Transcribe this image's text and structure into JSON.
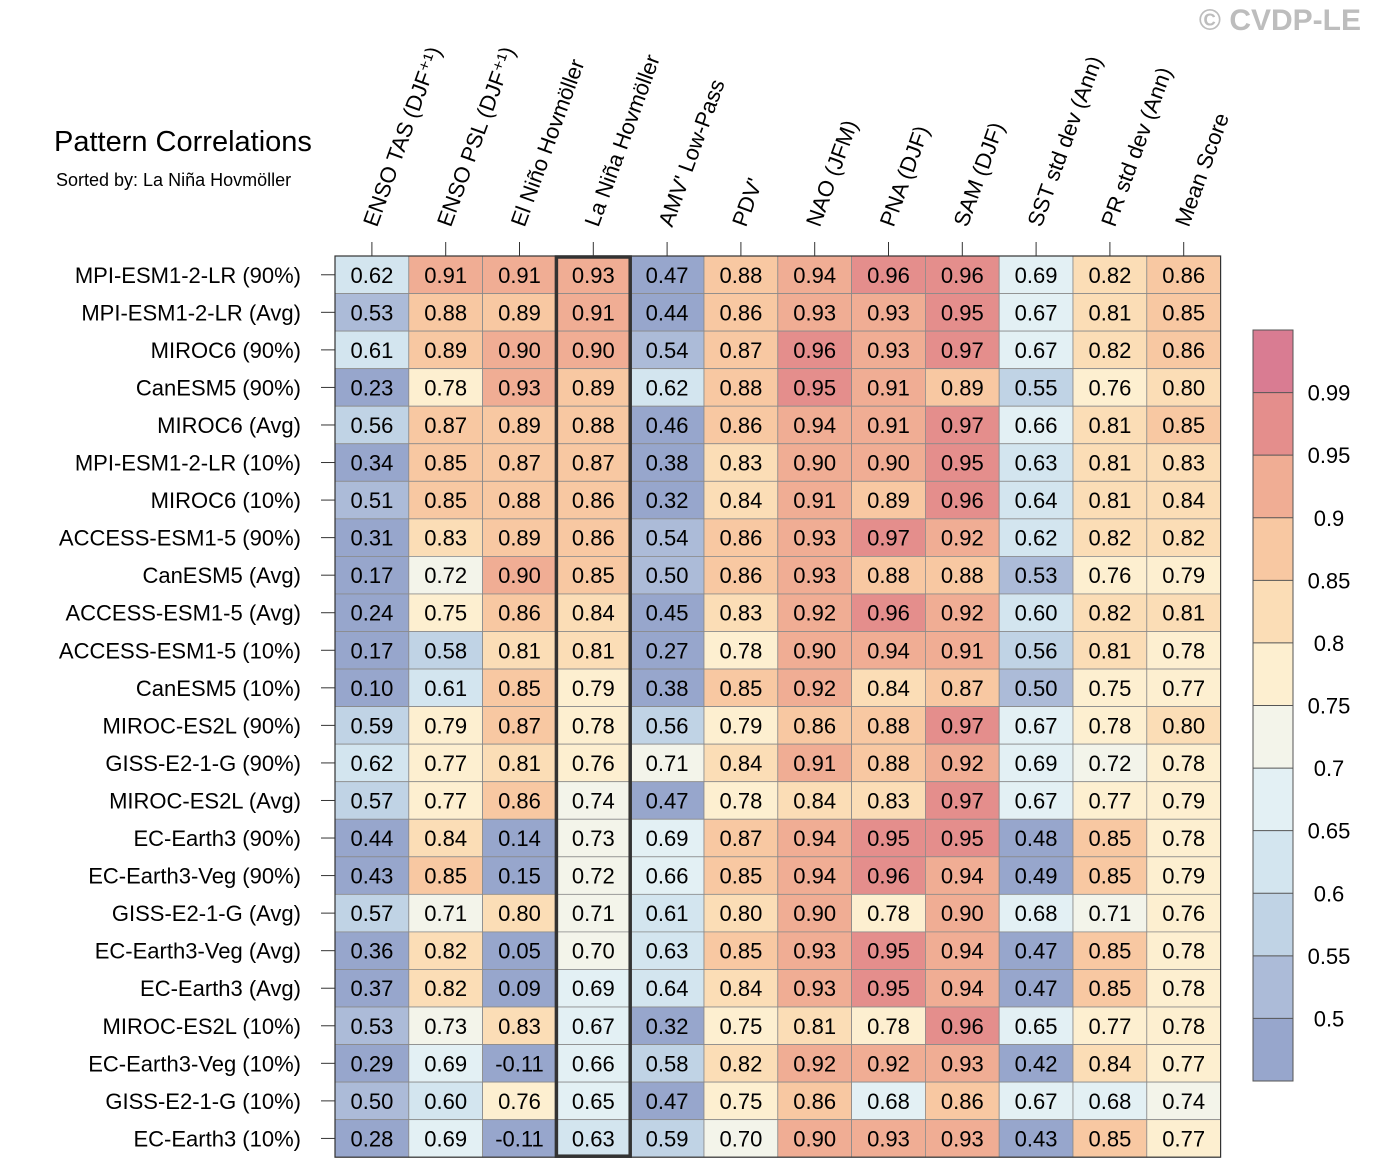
{
  "title": "Pattern Correlations",
  "subtitle": "Sorted by: La Niña Hovmöller",
  "watermark": "© CVDP-LE",
  "chart_data": {
    "type": "heatmap",
    "columns": [
      "ENSO TAS (DJF⁺¹)",
      "ENSO PSL (DJF⁺¹)",
      "El Niño Hovmöller",
      "La Niña Hovmöller",
      "AMV' Low-Pass",
      "PDV'",
      "NAO (JFM)",
      "PNA (DJF)",
      "SAM (DJF)",
      "SST std dev (Ann)",
      "PR std dev (Ann)",
      "Mean Score"
    ],
    "highlighted_column": "La Niña Hovmöller",
    "rows": [
      "MPI-ESM1-2-LR (90%)",
      "MPI-ESM1-2-LR (Avg)",
      "MIROC6 (90%)",
      "CanESM5 (90%)",
      "MIROC6 (Avg)",
      "MPI-ESM1-2-LR (10%)",
      "MIROC6 (10%)",
      "ACCESS-ESM1-5 (90%)",
      "CanESM5 (Avg)",
      "ACCESS-ESM1-5 (Avg)",
      "ACCESS-ESM1-5 (10%)",
      "CanESM5 (10%)",
      "MIROC-ES2L (90%)",
      "GISS-E2-1-G (90%)",
      "MIROC-ES2L (Avg)",
      "EC-Earth3 (90%)",
      "EC-Earth3-Veg (90%)",
      "GISS-E2-1-G (Avg)",
      "EC-Earth3-Veg (Avg)",
      "EC-Earth3 (Avg)",
      "MIROC-ES2L (10%)",
      "EC-Earth3-Veg (10%)",
      "GISS-E2-1-G (10%)",
      "EC-Earth3 (10%)"
    ],
    "values": [
      [
        "0.62",
        "0.91",
        "0.91",
        "0.93",
        "0.47",
        "0.88",
        "0.94",
        "0.96",
        "0.96",
        "0.69",
        "0.82",
        "0.86"
      ],
      [
        "0.53",
        "0.88",
        "0.89",
        "0.91",
        "0.44",
        "0.86",
        "0.93",
        "0.93",
        "0.95",
        "0.67",
        "0.81",
        "0.85"
      ],
      [
        "0.61",
        "0.89",
        "0.90",
        "0.90",
        "0.54",
        "0.87",
        "0.96",
        "0.93",
        "0.97",
        "0.67",
        "0.82",
        "0.86"
      ],
      [
        "0.23",
        "0.78",
        "0.93",
        "0.89",
        "0.62",
        "0.88",
        "0.95",
        "0.91",
        "0.89",
        "0.55",
        "0.76",
        "0.80"
      ],
      [
        "0.56",
        "0.87",
        "0.89",
        "0.88",
        "0.46",
        "0.86",
        "0.94",
        "0.91",
        "0.97",
        "0.66",
        "0.81",
        "0.85"
      ],
      [
        "0.34",
        "0.85",
        "0.87",
        "0.87",
        "0.38",
        "0.83",
        "0.90",
        "0.90",
        "0.95",
        "0.63",
        "0.81",
        "0.83"
      ],
      [
        "0.51",
        "0.85",
        "0.88",
        "0.86",
        "0.32",
        "0.84",
        "0.91",
        "0.89",
        "0.96",
        "0.64",
        "0.81",
        "0.84"
      ],
      [
        "0.31",
        "0.83",
        "0.89",
        "0.86",
        "0.54",
        "0.86",
        "0.93",
        "0.97",
        "0.92",
        "0.62",
        "0.82",
        "0.82"
      ],
      [
        "0.17",
        "0.72",
        "0.90",
        "0.85",
        "0.50",
        "0.86",
        "0.93",
        "0.88",
        "0.88",
        "0.53",
        "0.76",
        "0.79"
      ],
      [
        "0.24",
        "0.75",
        "0.86",
        "0.84",
        "0.45",
        "0.83",
        "0.92",
        "0.96",
        "0.92",
        "0.60",
        "0.82",
        "0.81"
      ],
      [
        "0.17",
        "0.58",
        "0.81",
        "0.81",
        "0.27",
        "0.78",
        "0.90",
        "0.94",
        "0.91",
        "0.56",
        "0.81",
        "0.78"
      ],
      [
        "0.10",
        "0.61",
        "0.85",
        "0.79",
        "0.38",
        "0.85",
        "0.92",
        "0.84",
        "0.87",
        "0.50",
        "0.75",
        "0.77"
      ],
      [
        "0.59",
        "0.79",
        "0.87",
        "0.78",
        "0.56",
        "0.79",
        "0.86",
        "0.88",
        "0.97",
        "0.67",
        "0.78",
        "0.80"
      ],
      [
        "0.62",
        "0.77",
        "0.81",
        "0.76",
        "0.71",
        "0.84",
        "0.91",
        "0.88",
        "0.92",
        "0.69",
        "0.72",
        "0.78"
      ],
      [
        "0.57",
        "0.77",
        "0.86",
        "0.74",
        "0.47",
        "0.78",
        "0.84",
        "0.83",
        "0.97",
        "0.67",
        "0.77",
        "0.79"
      ],
      [
        "0.44",
        "0.84",
        "0.14",
        "0.73",
        "0.69",
        "0.87",
        "0.94",
        "0.95",
        "0.95",
        "0.48",
        "0.85",
        "0.78"
      ],
      [
        "0.43",
        "0.85",
        "0.15",
        "0.72",
        "0.66",
        "0.85",
        "0.94",
        "0.96",
        "0.94",
        "0.49",
        "0.85",
        "0.79"
      ],
      [
        "0.57",
        "0.71",
        "0.80",
        "0.71",
        "0.61",
        "0.80",
        "0.90",
        "0.78",
        "0.90",
        "0.68",
        "0.71",
        "0.76"
      ],
      [
        "0.36",
        "0.82",
        "0.05",
        "0.70",
        "0.63",
        "0.85",
        "0.93",
        "0.95",
        "0.94",
        "0.47",
        "0.85",
        "0.78"
      ],
      [
        "0.37",
        "0.82",
        "0.09",
        "0.69",
        "0.64",
        "0.84",
        "0.93",
        "0.95",
        "0.94",
        "0.47",
        "0.85",
        "0.78"
      ],
      [
        "0.53",
        "0.73",
        "0.83",
        "0.67",
        "0.32",
        "0.75",
        "0.81",
        "0.78",
        "0.96",
        "0.65",
        "0.77",
        "0.78"
      ],
      [
        "0.29",
        "0.69",
        "-0.11",
        "0.66",
        "0.58",
        "0.82",
        "0.92",
        "0.92",
        "0.93",
        "0.42",
        "0.84",
        "0.77"
      ],
      [
        "0.50",
        "0.60",
        "0.76",
        "0.65",
        "0.47",
        "0.75",
        "0.86",
        "0.68",
        "0.86",
        "0.67",
        "0.68",
        "0.74"
      ],
      [
        "0.28",
        "0.69",
        "-0.11",
        "0.63",
        "0.59",
        "0.70",
        "0.90",
        "0.93",
        "0.93",
        "0.43",
        "0.85",
        "0.77"
      ]
    ],
    "colorbar": {
      "ticks": [
        "0.99",
        "0.95",
        "0.9",
        "0.85",
        "0.8",
        "0.75",
        "0.7",
        "0.65",
        "0.6",
        "0.55",
        "0.5"
      ],
      "bounds": [
        0.5,
        0.55,
        0.6,
        0.65,
        0.7,
        0.75,
        0.8,
        0.85,
        0.9,
        0.95,
        0.99
      ],
      "colors": [
        "#97a6cc",
        "#acbbd8",
        "#c0d3e5",
        "#d3e5ef",
        "#e3f0f4",
        "#f3f4ea",
        "#fdefd0",
        "#fbddb6",
        "#f8c8a2",
        "#f0ad94",
        "#e48e8c",
        "#d97c92"
      ]
    }
  }
}
